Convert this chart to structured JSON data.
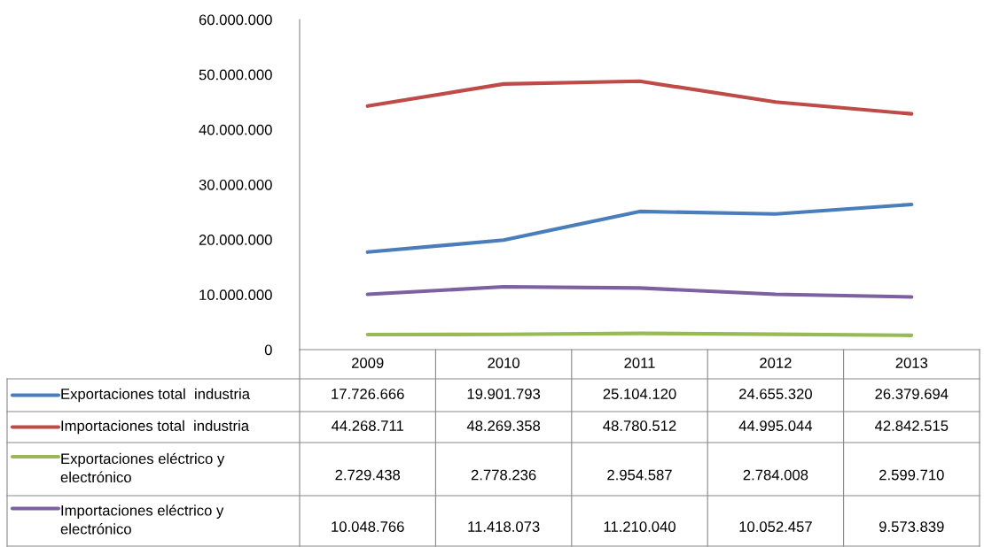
{
  "chart_data": {
    "type": "line",
    "categories": [
      "2009",
      "2010",
      "2011",
      "2012",
      "2013"
    ],
    "series": [
      {
        "name": "Exportaciones total  industria",
        "color": "#4a7ebb",
        "values": [
          17726666,
          19901793,
          25104120,
          24655320,
          26379694
        ],
        "value_labels": [
          "17.726.666",
          "19.901.793",
          "25.104.120",
          "24.655.320",
          "26.379.694"
        ]
      },
      {
        "name": "Importaciones total  industria",
        "color": "#be4b48",
        "values": [
          44268711,
          48269358,
          48780512,
          44995044,
          42842515
        ],
        "value_labels": [
          "44.268.711",
          "48.269.358",
          "48.780.512",
          "44.995.044",
          "42.842.515"
        ]
      },
      {
        "name": "Exportaciones eléctrico y electrónico",
        "color": "#98b954",
        "values": [
          2729438,
          2778236,
          2954587,
          2784008,
          2599710
        ],
        "value_labels": [
          "2.729.438",
          "2.778.236",
          "2.954.587",
          "2.784.008",
          "2.599.710"
        ]
      },
      {
        "name": "Importaciones eléctrico y electrónico",
        "color": "#7d60a0",
        "values": [
          10048766,
          11418073,
          11210040,
          10052457,
          9573839
        ],
        "value_labels": [
          "10.048.766",
          "11.418.073",
          "11.210.040",
          "10.052.457",
          "9.573.839"
        ]
      }
    ],
    "ylim": [
      0,
      60000000
    ],
    "yticks": [
      0,
      {
        "value": 10000000,
        "label": "10.000.000"
      },
      {
        "value": 20000000,
        "label": "20.000.000"
      },
      {
        "value": 30000000,
        "label": "30.000.000"
      },
      {
        "value": 40000000,
        "label": "40.000.000"
      },
      {
        "value": 50000000,
        "label": "50.000.000"
      },
      {
        "value": 60000000,
        "label": "60.000.000"
      }
    ],
    "legend": "bottom",
    "grid": false,
    "marker": "none",
    "line_style": "solid"
  }
}
